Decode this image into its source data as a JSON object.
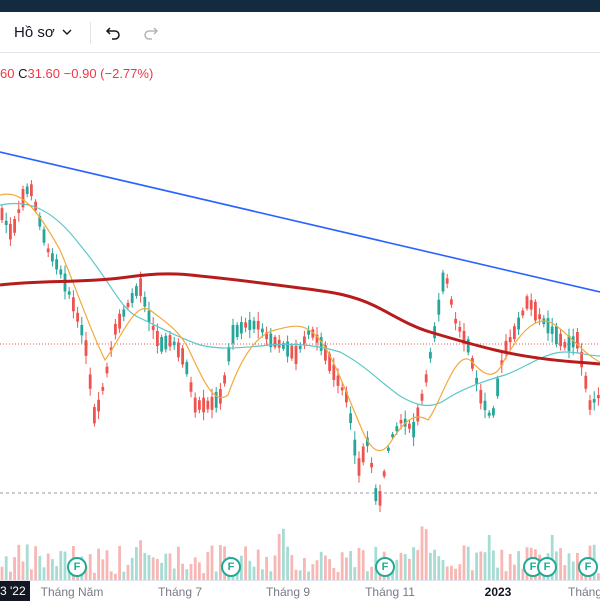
{
  "toolbar": {
    "profile_label": "Hồ sơ",
    "undo_icon": "undo-icon",
    "redo_icon": "redo-icon",
    "chevron_icon": "chevron-down-icon"
  },
  "legend": {
    "low_partial": "60",
    "close_label": "C",
    "close_value": "31.60",
    "change": "−0.90 (−2.77%)"
  },
  "time_axis": {
    "current_date": "3 '22",
    "ticks": [
      {
        "label": "Tháng Năm",
        "bold": false
      },
      {
        "label": "Tháng 7",
        "bold": false
      },
      {
        "label": "Tháng 9",
        "bold": false
      },
      {
        "label": "Tháng 11",
        "bold": false
      },
      {
        "label": "2023",
        "bold": true
      },
      {
        "label": "Tháng",
        "bold": false
      }
    ]
  },
  "markers": {
    "label": "F",
    "count": 6
  },
  "colors": {
    "up": "#26a69a",
    "down": "#ef5350",
    "trendline": "#2962ff",
    "ma_long": "#b71c1c",
    "ma_fast": "#f2a93b",
    "ma_mid": "#5ac8c8",
    "topbar": "#142a3f"
  }
}
